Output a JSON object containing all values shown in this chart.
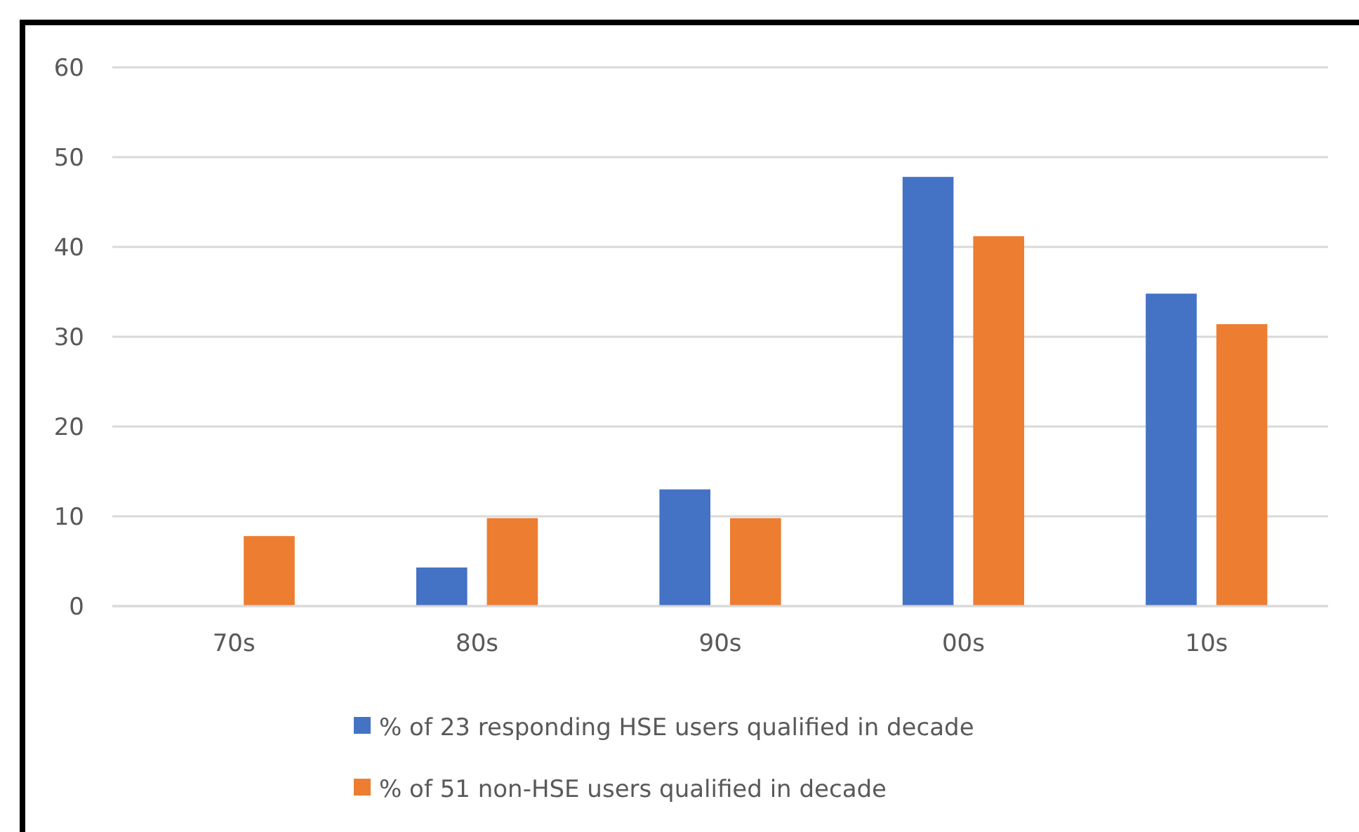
{
  "chart_data": {
    "type": "bar",
    "categories": [
      "70s",
      "80s",
      "90s",
      "00s",
      "10s"
    ],
    "series": [
      {
        "name": "% of 23 responding HSE users qualified in decade",
        "color": "#4472c4",
        "values": [
          0,
          4.3,
          13.0,
          47.8,
          34.8
        ]
      },
      {
        "name": "% of 51 non-HSE users qualified in decade",
        "color": "#ed7d31",
        "values": [
          7.8,
          9.8,
          9.8,
          41.2,
          31.4
        ]
      }
    ],
    "ylim": [
      0,
      60
    ],
    "yticks": [
      0,
      10,
      20,
      30,
      40,
      50,
      60
    ],
    "grid": "y",
    "legend": "bottom"
  }
}
